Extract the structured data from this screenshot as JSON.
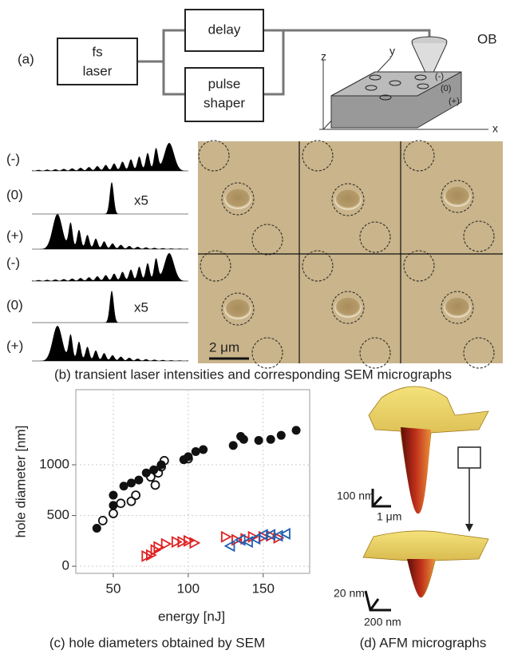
{
  "panel_a": {
    "label": "(a)",
    "laser": [
      "fs",
      "laser"
    ],
    "delay": "delay",
    "shaper": [
      "pulse",
      "shaper"
    ],
    "objective": "OB",
    "axes": [
      "z",
      "y",
      "x"
    ],
    "marks": [
      "(-)",
      "(0)",
      "(+)"
    ]
  },
  "panel_b": {
    "pulse_labels": [
      "(-)",
      "(0)",
      "(+)",
      "(-)",
      "(0)",
      "(+)"
    ],
    "factors": [
      "x5",
      "x5"
    ],
    "scale": "2 μm",
    "caption": "(b) transient laser intensities and corresponding SEM micrographs"
  },
  "chart_data": {
    "type": "scatter",
    "xlabel": "energy [nJ]",
    "ylabel": "hole diameter [nm]",
    "caption": "(c) hole diameters obtained by SEM",
    "xlim": [
      25,
      181
    ],
    "ylim": [
      -70,
      1740
    ],
    "xticks": [
      50,
      100,
      150
    ],
    "yticks": [
      0,
      500,
      1000
    ],
    "grid": true,
    "series": [
      {
        "color": "#111111",
        "marker": "filled-circle",
        "x": [
          39,
          50,
          50,
          57,
          62,
          67,
          72,
          77,
          82,
          97,
          100,
          105,
          110,
          130,
          135,
          137,
          147,
          155,
          162,
          172
        ],
        "values": [
          375,
          600,
          700,
          790,
          820,
          850,
          920,
          950,
          1000,
          1050,
          1080,
          1130,
          1150,
          1190,
          1280,
          1250,
          1240,
          1250,
          1290,
          1340
        ]
      },
      {
        "color": "#111111",
        "marker": "open-circle",
        "x": [
          43,
          50,
          55,
          62,
          65,
          75,
          78,
          80,
          82,
          84,
          100
        ],
        "values": [
          450,
          520,
          620,
          640,
          700,
          880,
          800,
          920,
          980,
          1040,
          1060
        ]
      },
      {
        "color": "#e02020",
        "marker": "triangle-right",
        "x": [
          72,
          75,
          78,
          80,
          85,
          92,
          96,
          100,
          104,
          125,
          132,
          138,
          143,
          150,
          155,
          160
        ],
        "values": [
          100,
          110,
          160,
          190,
          220,
          240,
          240,
          250,
          230,
          290,
          260,
          270,
          290,
          290,
          300,
          280
        ]
      },
      {
        "color": "#1f5fb0",
        "marker": "triangle-left",
        "x": [
          128,
          135,
          140,
          145,
          150,
          155,
          160,
          165
        ],
        "values": [
          200,
          260,
          240,
          270,
          310,
          310,
          300,
          320
        ]
      }
    ]
  },
  "panel_d": {
    "scale_top": [
      "100 nm",
      "1 μm"
    ],
    "scale_bottom": [
      "20 nm",
      "200 nm"
    ],
    "caption": "(d) AFM micrographs"
  }
}
